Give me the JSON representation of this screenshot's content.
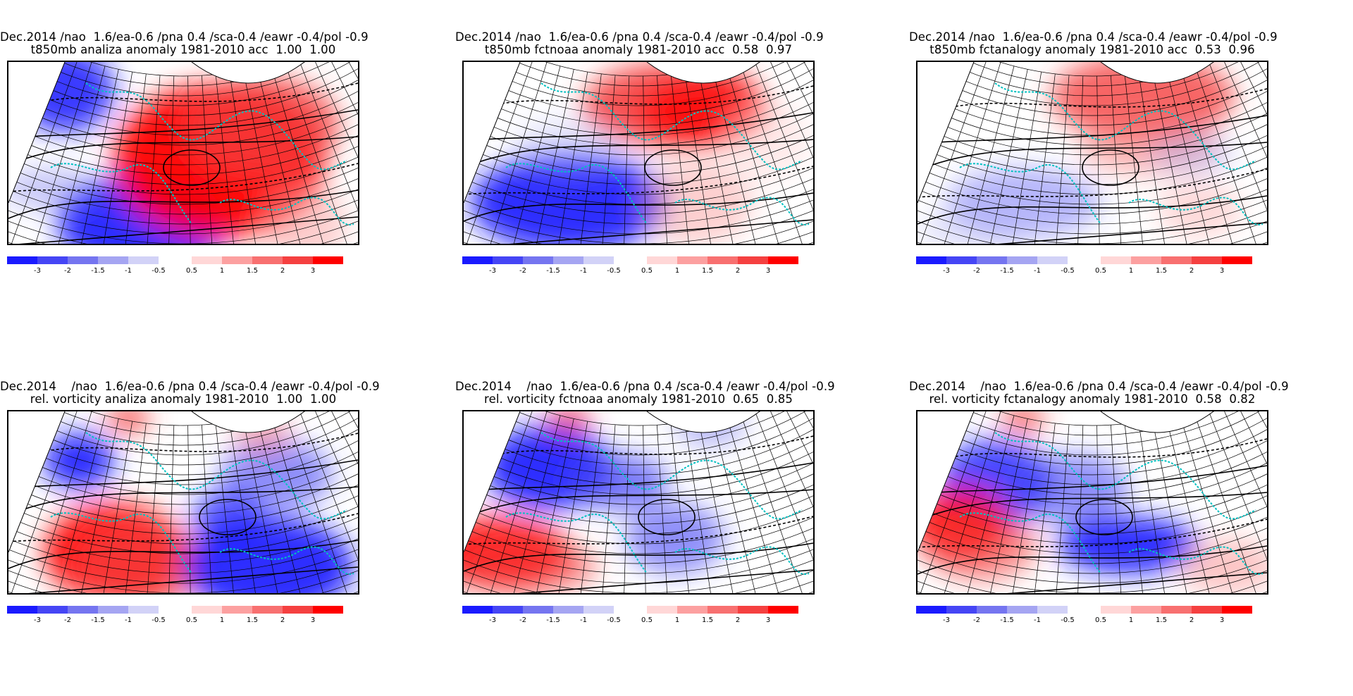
{
  "panels": [
    {
      "title1": "Dec.2014 /nao  1.6/ea-0.6 /pna 0.4 /sca-0.4 /eawr -0.4/pol -0.9",
      "title2": "t850mb analiza anomaly 1981-2010 acc  1.00  1.00",
      "variable": "t850mb",
      "source": "analiza",
      "acc": [
        "1.00",
        "1.00"
      ]
    },
    {
      "title1": "Dec.2014 /nao  1.6/ea-0.6 /pna 0.4 /sca-0.4 /eawr -0.4/pol -0.9",
      "title2": "t850mb fctnoaa anomaly 1981-2010 acc  0.58  0.97",
      "variable": "t850mb",
      "source": "fctnoaa",
      "acc": [
        "0.58",
        "0.97"
      ]
    },
    {
      "title1": "Dec.2014 /nao  1.6/ea-0.6 /pna 0.4 /sca-0.4 /eawr -0.4/pol -0.9",
      "title2": "t850mb fctanalogy anomaly 1981-2010 acc  0.53  0.96",
      "variable": "t850mb",
      "source": "fctanalogy",
      "acc": [
        "0.53",
        "0.96"
      ]
    },
    {
      "title1": "Dec.2014    /nao  1.6/ea-0.6 /pna 0.4 /sca-0.4 /eawr -0.4/pol -0.9",
      "title2": "rel. vorticity analiza anomaly 1981-2010  1.00  1.00",
      "variable": "rel. vorticity",
      "source": "analiza",
      "acc": [
        "1.00",
        "1.00"
      ]
    },
    {
      "title1": "Dec.2014    /nao  1.6/ea-0.6 /pna 0.4 /sca-0.4 /eawr -0.4/pol -0.9",
      "title2": "rel. vorticity fctnoaa anomaly 1981-2010  0.65  0.85",
      "variable": "rel. vorticity",
      "source": "fctnoaa",
      "acc": [
        "0.65",
        "0.85"
      ]
    },
    {
      "title1": "Dec.2014    /nao  1.6/ea-0.6 /pna 0.4 /sca-0.4 /eawr -0.4/pol -0.9",
      "title2": "rel. vorticity fctanalogy anomaly 1981-2010  0.58  0.82",
      "variable": "rel. vorticity",
      "source": "fctanalogy",
      "acc": [
        "0.58",
        "0.82"
      ]
    }
  ],
  "colorbar": {
    "labels": [
      "-3",
      "-2",
      "-1.5",
      "-1",
      "-0.5",
      "0.5",
      "1",
      "1.5",
      "2",
      "3"
    ],
    "colors": [
      "#1a1aff",
      "#4545f5",
      "#7575f0",
      "#a5a5f2",
      "#d2d2f7",
      "#ffd7d7",
      "#fca0a0",
      "#f87070",
      "#f54040",
      "#ff0000"
    ]
  },
  "colors": {
    "coastline": "#00c0c0",
    "contour": "#000000",
    "negative": "#1a1aff",
    "positive": "#ff0000"
  }
}
